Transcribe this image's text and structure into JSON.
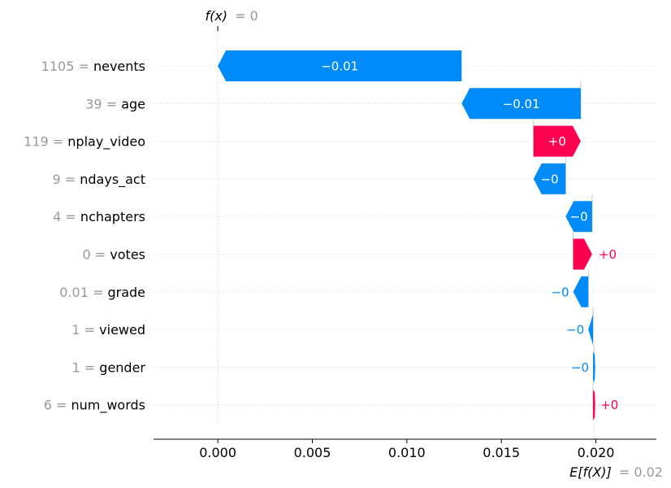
{
  "chart_data": {
    "type": "waterfall",
    "fx_label": "f(x)",
    "fx_value_text": "= 0",
    "ex_label": "E[f(X)]",
    "ex_value_text": "= 0.02",
    "base_value": 0.0199,
    "output_value": 0.0,
    "xlim": [
      -0.0034,
      0.0232
    ],
    "xticks": [
      {
        "value": 0.0,
        "label": "0.000"
      },
      {
        "value": 0.005,
        "label": "0.005"
      },
      {
        "value": 0.01,
        "label": "0.010"
      },
      {
        "value": 0.015,
        "label": "0.015"
      },
      {
        "value": 0.02,
        "label": "0.020"
      }
    ],
    "colors": {
      "positive": "#ff0051",
      "negative": "#008bfb",
      "value_label": "#999999"
    },
    "features": [
      {
        "value_label": "1105",
        "name": "nevents",
        "start": 0.0129,
        "end": 0.0,
        "shap_text": "−0.01",
        "label_inside": true
      },
      {
        "value_label": "39",
        "name": "age",
        "start": 0.0192,
        "end": 0.0129,
        "shap_text": "−0.01",
        "label_inside": true
      },
      {
        "value_label": "119",
        "name": "nplay_video",
        "start": 0.0167,
        "end": 0.0192,
        "shap_text": "+0",
        "label_inside": true
      },
      {
        "value_label": "9",
        "name": "ndays_act",
        "start": 0.0184,
        "end": 0.0167,
        "shap_text": "−0",
        "label_inside": true
      },
      {
        "value_label": "4",
        "name": "nchapters",
        "start": 0.0198,
        "end": 0.0184,
        "shap_text": "−0",
        "label_inside": true
      },
      {
        "value_label": "0",
        "name": "votes",
        "start": 0.0188,
        "end": 0.0198,
        "shap_text": "+0",
        "label_inside": false
      },
      {
        "value_label": "0.01",
        "name": "grade",
        "start": 0.0196,
        "end": 0.0188,
        "shap_text": "−0",
        "label_inside": false
      },
      {
        "value_label": "1",
        "name": "viewed",
        "start": 0.01985,
        "end": 0.0196,
        "shap_text": "−0",
        "label_inside": false
      },
      {
        "value_label": "1",
        "name": "gender",
        "start": 0.0199,
        "end": 0.01985,
        "shap_text": "−0",
        "label_inside": false
      },
      {
        "value_label": "6",
        "name": "num_words",
        "start": 0.01985,
        "end": 0.0199,
        "shap_text": "+0",
        "label_inside": false
      }
    ]
  }
}
